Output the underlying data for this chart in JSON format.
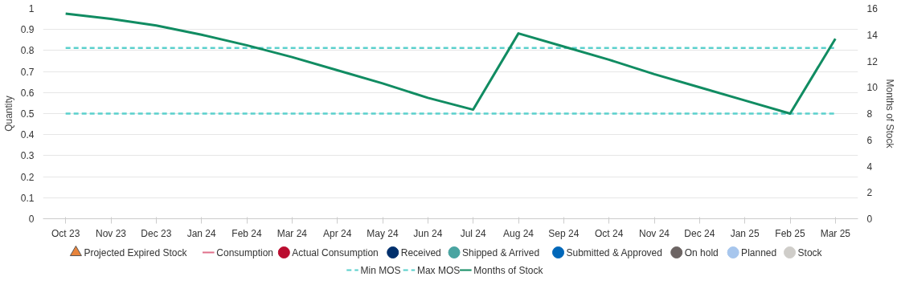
{
  "chart_data": {
    "type": "line",
    "ylabel": "Quantity",
    "y2label": "Months of Stock",
    "categories": [
      "Oct 23",
      "Nov 23",
      "Dec 23",
      "Jan 24",
      "Feb 24",
      "Mar 24",
      "Apr 24",
      "May 24",
      "Jun 24",
      "Jul 24",
      "Aug 24",
      "Sep 24",
      "Oct 24",
      "Nov 24",
      "Dec 24",
      "Jan 25",
      "Feb 25",
      "Mar 25"
    ],
    "ylim": [
      0,
      1
    ],
    "yticks": [
      0,
      0.1,
      0.2,
      0.3,
      0.4,
      0.5,
      0.6,
      0.7,
      0.8,
      0.9,
      1
    ],
    "y2lim": [
      0,
      16
    ],
    "y2ticks": [
      0,
      2,
      4,
      6,
      8,
      10,
      12,
      14,
      16
    ],
    "grid": "y",
    "legend": "bottom",
    "series": [
      {
        "name": "Projected Expired Stock",
        "type": "scatter",
        "marker": "triangle",
        "color": "#e8843c",
        "values": [
          null,
          null,
          null,
          null,
          null,
          null,
          null,
          null,
          null,
          null,
          null,
          null,
          null,
          null,
          null,
          null,
          null,
          null
        ]
      },
      {
        "name": "Consumption",
        "color": "#e0708a",
        "values": [
          null,
          null,
          null,
          null,
          null,
          null,
          null,
          null,
          null,
          null,
          null,
          null,
          null,
          null,
          null,
          null,
          null,
          null
        ]
      },
      {
        "name": "Actual Consumption",
        "type": "scatter",
        "marker": "circle",
        "color": "#ba0c2f",
        "values": [
          null,
          null,
          null,
          null,
          null,
          null,
          null,
          null,
          null,
          null,
          null,
          null,
          null,
          null,
          null,
          null,
          null,
          null
        ]
      },
      {
        "name": "Received",
        "type": "scatter",
        "marker": "circle",
        "color": "#002f6c",
        "values": [
          null,
          null,
          null,
          null,
          null,
          null,
          null,
          null,
          null,
          null,
          null,
          null,
          null,
          null,
          null,
          null,
          null,
          null
        ]
      },
      {
        "name": "Shipped & Arrived",
        "type": "scatter",
        "marker": "circle",
        "color": "#49a4a1",
        "values": [
          null,
          null,
          null,
          null,
          null,
          null,
          null,
          null,
          null,
          null,
          null,
          null,
          null,
          null,
          null,
          null,
          null,
          null
        ]
      },
      {
        "name": "Submitted & Approved",
        "type": "scatter",
        "marker": "circle",
        "color": "#0067b9",
        "values": [
          null,
          null,
          null,
          null,
          null,
          null,
          null,
          null,
          null,
          null,
          null,
          null,
          null,
          null,
          null,
          null,
          null,
          null
        ]
      },
      {
        "name": "On hold",
        "type": "scatter",
        "marker": "circle",
        "color": "#6c6463",
        "values": [
          null,
          null,
          null,
          null,
          null,
          null,
          null,
          null,
          null,
          null,
          null,
          null,
          null,
          null,
          null,
          null,
          null,
          null
        ]
      },
      {
        "name": "Planned",
        "type": "scatter",
        "marker": "circle",
        "color": "#a7c6ed",
        "values": [
          null,
          null,
          null,
          null,
          null,
          null,
          null,
          null,
          null,
          null,
          null,
          null,
          null,
          null,
          null,
          null,
          null,
          null
        ]
      },
      {
        "name": "Stock",
        "type": "scatter",
        "marker": "circle",
        "color": "#cfcdc9",
        "values": [
          null,
          null,
          null,
          null,
          null,
          null,
          null,
          null,
          null,
          null,
          null,
          null,
          null,
          null,
          null,
          null,
          null,
          null
        ]
      },
      {
        "name": "Min MOS",
        "line_style": "dashed",
        "axis": "y2",
        "color": "#5ad0cc",
        "values": [
          8,
          8,
          8,
          8,
          8,
          8,
          8,
          8,
          8,
          8,
          8,
          8,
          8,
          8,
          8,
          8,
          8,
          8
        ]
      },
      {
        "name": "Max MOS",
        "line_style": "dashed",
        "axis": "y2",
        "color": "#5ad0cc",
        "values": [
          13,
          13,
          13,
          13,
          13,
          13,
          13,
          13,
          13,
          13,
          13,
          13,
          13,
          13,
          13,
          13,
          13,
          13
        ]
      },
      {
        "name": "Months of Stock",
        "line_style": "solid",
        "axis": "y2",
        "color": "#118c62",
        "values": [
          15.6,
          15.2,
          14.7,
          14.0,
          13.2,
          12.3,
          11.3,
          10.3,
          9.2,
          8.3,
          14.1,
          13.1,
          12.1,
          11.0,
          10.0,
          9.0,
          8.0,
          13.7
        ]
      }
    ]
  }
}
